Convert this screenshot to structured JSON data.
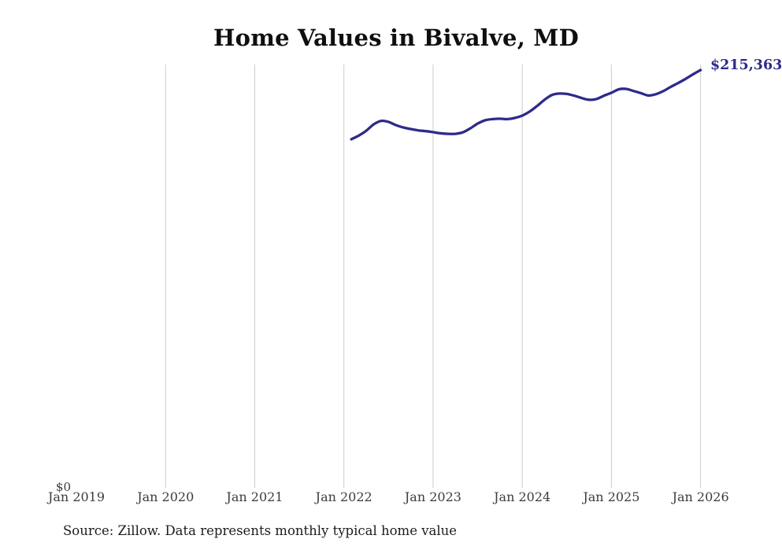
{
  "title": "Home Values in Bivalve, MD",
  "source_note": "Source: Zillow. Data represents monthly typical home value",
  "chart_data": {
    "type": "line",
    "title": "Home Values in Bivalve, MD",
    "xlabel": "",
    "ylabel": "",
    "x_tick_labels": [
      "Jan 2019",
      "Jan 2020",
      "Jan 2021",
      "Jan 2022",
      "Jan 2023",
      "Jan 2024",
      "Jan 2025",
      "Jan 2026"
    ],
    "y_axis": {
      "zero_label": "$0",
      "min": 0,
      "max_value_shown": 215363
    },
    "last_point_label": "$215,363",
    "grid": "vertical-yearly-2020-through-2026",
    "legend": "none",
    "series": [
      {
        "name": "typical-home-value",
        "start_month": "2022-02",
        "end_month": "2026-01",
        "frequency": "monthly",
        "values": [
          179600,
          181500,
          184000,
          187300,
          189100,
          188600,
          186900,
          185700,
          184900,
          184200,
          183800,
          183300,
          182700,
          182400,
          182400,
          183200,
          185200,
          187700,
          189400,
          190000,
          190200,
          190000,
          190600,
          191800,
          193900,
          196800,
          200000,
          202500,
          203200,
          203000,
          202100,
          200900,
          200000,
          200400,
          202100,
          203600,
          205400,
          205600,
          204500,
          203400,
          202200,
          202900,
          204500,
          206700,
          208700,
          210800,
          213200,
          215363
        ]
      }
    ],
    "colors": {
      "line": "#2e2a8b",
      "end_label": "#2e2a8b",
      "gridline": "#cccccc",
      "tick_label": "#3c3c3c",
      "title": "#0f0f0f",
      "background": "#ffffff"
    }
  }
}
